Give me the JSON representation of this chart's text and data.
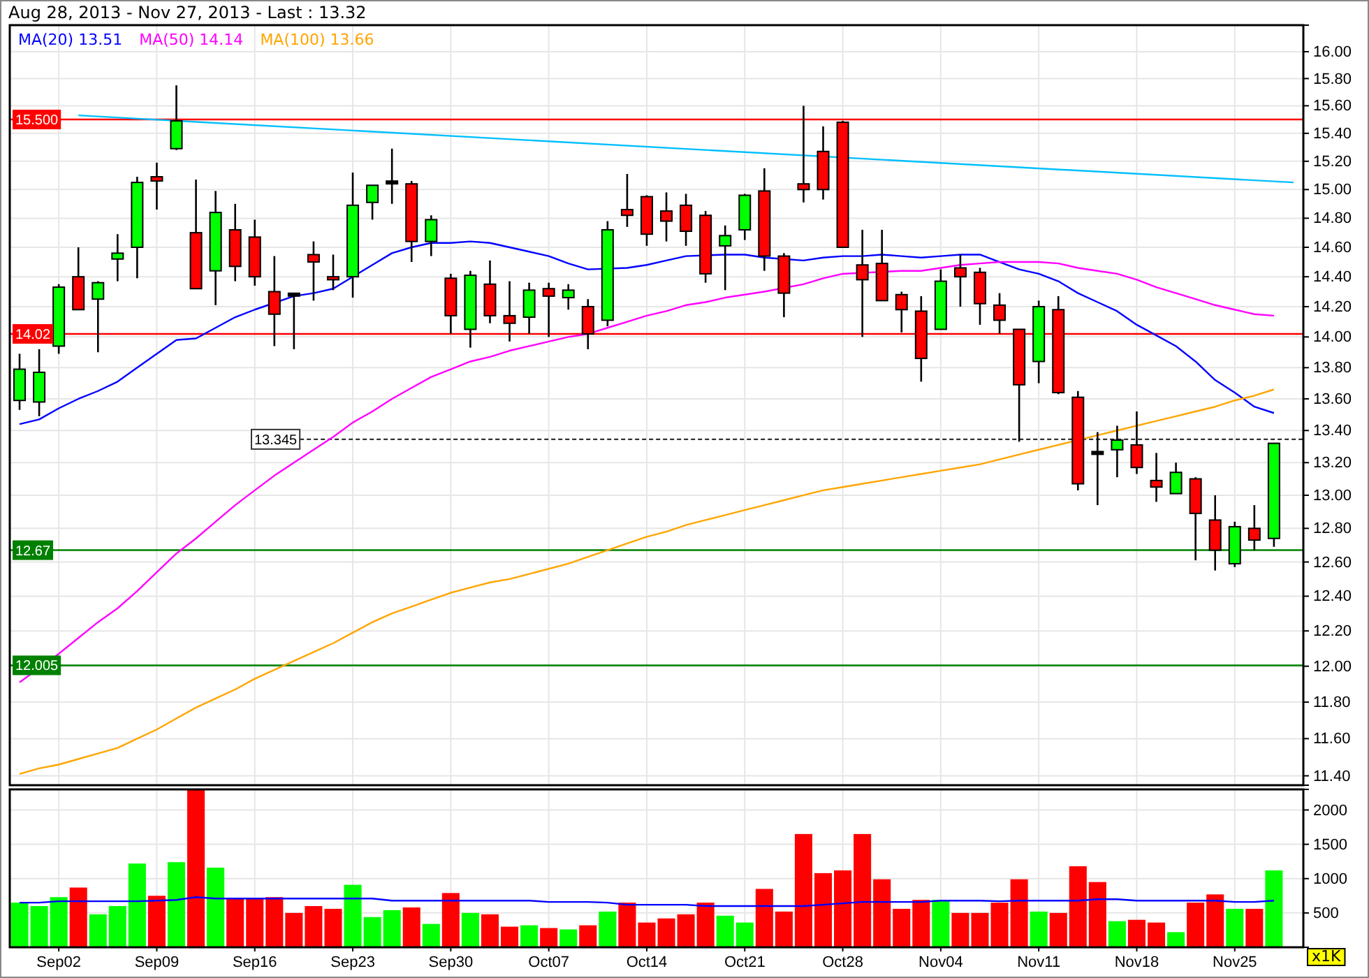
{
  "chart_data": [
    {
      "type": "candlestick",
      "title": "Aug 28, 2013 - Nov 27, 2013 - Last : 13.32",
      "log": true,
      "grid": true,
      "legend": "top left",
      "tick_labels": "y",
      "categories": [
        null,
        null,
        null,
        null,
        null,
        null,
        null,
        null,
        null,
        null,
        null,
        null,
        null,
        null,
        null,
        null,
        null,
        null,
        null,
        null,
        null,
        null,
        null,
        null,
        null,
        null,
        null,
        null,
        null,
        null,
        null,
        null,
        null,
        null,
        null,
        null,
        null,
        null,
        null,
        null,
        null,
        null,
        null,
        null,
        null,
        null,
        null,
        null,
        null,
        null,
        null,
        null,
        null,
        null,
        null,
        null,
        null,
        null,
        null,
        null,
        null,
        null,
        null,
        null,
        null,
        null
      ],
      "ylim": [
        11.35,
        16.2
      ],
      "yticks": [
        {
          "value": 11.4,
          "label": "11.40"
        },
        {
          "value": 11.6,
          "label": "11.60"
        },
        {
          "value": 11.8,
          "label": "11.80"
        },
        {
          "value": 12,
          "label": "12.00"
        },
        {
          "value": 12.2,
          "label": "12.20"
        },
        {
          "value": 12.4,
          "label": "12.40"
        },
        {
          "value": 12.6,
          "label": "12.60"
        },
        {
          "value": 12.8,
          "label": "12.80"
        },
        {
          "value": 13,
          "label": "13.00"
        },
        {
          "value": 13.2,
          "label": "13.20"
        },
        {
          "value": 13.4,
          "label": "13.40"
        },
        {
          "value": 13.6,
          "label": "13.60"
        },
        {
          "value": 13.8,
          "label": "13.80"
        },
        {
          "value": 14,
          "label": "14.00"
        },
        {
          "value": 14.2,
          "label": "14.20"
        },
        {
          "value": 14.4,
          "label": "14.40"
        },
        {
          "value": 14.6,
          "label": "14.60"
        },
        {
          "value": 14.8,
          "label": "14.80"
        },
        {
          "value": 15,
          "label": "15.00"
        },
        {
          "value": 15.2,
          "label": "15.20"
        },
        {
          "value": 15.4,
          "label": "15.40"
        },
        {
          "value": 15.6,
          "label": "15.60"
        },
        {
          "value": 15.8,
          "label": "15.80"
        },
        {
          "value": 16,
          "label": "16.00"
        }
      ],
      "ref_lines": [
        {
          "axis": "y",
          "value": 15.5,
          "label": "15.500",
          "color": "#ff0000",
          "line_style": "solid"
        },
        {
          "axis": "y",
          "value": 14.02,
          "label": "14.02",
          "color": "#ff0000",
          "line_style": "solid"
        },
        {
          "axis": "y",
          "value": 13.345,
          "label": "13.345",
          "color": "#333333",
          "line_style": "dashed"
        },
        {
          "axis": "y",
          "value": 12.67,
          "label": "12.67",
          "color": "#008000",
          "line_style": "solid"
        },
        {
          "axis": "y",
          "value": 12.005,
          "label": "12.005",
          "color": "#008000",
          "line_style": "solid"
        }
      ],
      "series": [
        {
          "type": "line",
          "name": "MA(20) 13.51",
          "color": "#0000ff",
          "values": [
            13.44,
            13.47,
            13.54,
            13.6,
            13.65,
            13.71,
            13.8,
            13.89,
            13.98,
            13.99,
            14.06,
            14.13,
            14.18,
            null,
            14.27,
            14.29,
            14.32,
            14.4,
            14.48,
            14.56,
            14.6,
            14.63,
            14.63,
            14.64,
            14.63,
            14.6,
            14.57,
            14.54,
            14.49,
            14.45,
            null,
            14.46,
            14.48,
            14.51,
            14.54,
            null,
            14.55,
            14.55,
            14.53,
            null,
            14.51,
            14.53,
            14.54,
            14.54,
            14.55,
            14.54,
            14.53,
            14.54,
            14.55,
            14.55,
            14.5,
            14.45,
            14.42,
            14.37,
            14.29,
            14.23,
            14.17,
            14.08,
            14.01,
            13.94,
            13.84,
            13.72,
            13.64,
            13.55,
            13.51,
            null
          ]
        },
        {
          "type": "line",
          "name": "MA(50) 14.14",
          "color": "#ff00ff",
          "values": [
            11.91,
            11.99,
            12.07,
            12.16,
            12.25,
            12.33,
            12.43,
            12.54,
            12.65,
            12.74,
            12.84,
            12.94,
            13.03,
            13.12,
            13.2,
            13.28,
            13.36,
            13.45,
            13.52,
            13.6,
            13.67,
            13.74,
            13.79,
            13.84,
            13.87,
            13.91,
            13.94,
            13.97,
            14,
            14.02,
            14.06,
            14.1,
            14.14,
            14.17,
            14.21,
            14.23,
            14.26,
            14.28,
            14.3,
            null,
            14.35,
            14.39,
            14.42,
            null,
            null,
            14.44,
            14.44,
            14.46,
            14.48,
            14.49,
            14.5,
            14.5,
            14.5,
            14.49,
            14.46,
            14.44,
            14.42,
            14.38,
            14.33,
            14.29,
            14.25,
            14.21,
            14.18,
            14.15,
            14.14,
            null
          ]
        },
        {
          "type": "line",
          "name": "MA(100) 13.66",
          "color": "#ffa500",
          "values": [
            11.41,
            11.44,
            11.46,
            11.49,
            11.52,
            11.55,
            11.6,
            11.65,
            11.71,
            11.77,
            11.82,
            11.87,
            11.93,
            11.98,
            12.03,
            12.08,
            12.13,
            12.19,
            12.25,
            12.3,
            12.34,
            12.38,
            12.42,
            12.45,
            12.48,
            12.5,
            12.53,
            12.56,
            12.59,
            12.63,
            12.67,
            12.71,
            12.75,
            12.78,
            12.82,
            12.85,
            12.88,
            12.91,
            12.94,
            12.97,
            13,
            13.03,
            13.05,
            13.07,
            13.09,
            13.11,
            13.13,
            13.15,
            13.17,
            13.19,
            13.22,
            13.25,
            13.28,
            13.31,
            null,
            13.37,
            13.4,
            13.43,
            13.46,
            13.49,
            13.52,
            13.55,
            13.59,
            13.62,
            13.66,
            null
          ]
        },
        {
          "type": "line",
          "color": "#00bfff",
          "values": [
            null,
            null,
            null,
            15.53,
            null,
            null,
            null,
            null,
            null,
            null,
            null,
            null,
            null,
            null,
            null,
            null,
            null,
            null,
            null,
            null,
            null,
            null,
            null,
            null,
            null,
            null,
            null,
            null,
            null,
            null,
            null,
            null,
            null,
            null,
            null,
            null,
            null,
            null,
            null,
            null,
            null,
            null,
            null,
            null,
            null,
            null,
            null,
            null,
            null,
            null,
            null,
            null,
            null,
            null,
            null,
            null,
            null,
            null,
            null,
            null,
            null,
            null,
            null,
            null,
            null,
            15.05
          ]
        },
        {
          "ohlc": [
            [
              13.59,
              13.89,
              13.53,
              13.79
            ],
            [
              13.58,
              13.92,
              13.49,
              13.77
            ],
            [
              13.94,
              14.35,
              13.89,
              14.33
            ],
            [
              14.4,
              14.6,
              14.18,
              14.18
            ],
            [
              14.25,
              14.37,
              13.9,
              14.36
            ],
            [
              14.52,
              14.69,
              14.37,
              14.56
            ],
            [
              14.6,
              15.09,
              14.39,
              15.05
            ],
            [
              15.09,
              15.19,
              14.86,
              15.06
            ],
            [
              15.29,
              15.75,
              15.28,
              15.49
            ],
            [
              14.7,
              15.07,
              14.32,
              14.32
            ],
            [
              14.44,
              14.99,
              14.21,
              14.84
            ],
            [
              14.72,
              14.9,
              14.37,
              14.47
            ],
            [
              14.67,
              14.79,
              14.34,
              14.4
            ],
            [
              14.3,
              14.54,
              13.94,
              14.15
            ],
            [
              14.28,
              14.29,
              13.92,
              14.28
            ],
            [
              14.55,
              14.64,
              14.24,
              14.5
            ],
            [
              14.4,
              14.55,
              14.31,
              14.38
            ],
            [
              14.4,
              15.12,
              14.26,
              14.89
            ],
            [
              14.91,
              15.03,
              14.79,
              15.03
            ],
            [
              15.05,
              15.29,
              14.9,
              15.05
            ],
            [
              15.04,
              15.06,
              14.5,
              14.64
            ],
            [
              14.64,
              14.82,
              14.54,
              14.79
            ],
            [
              14.39,
              14.42,
              14.02,
              14.14
            ],
            [
              14.05,
              14.44,
              13.93,
              14.41
            ],
            [
              14.35,
              14.51,
              14.09,
              14.14
            ],
            [
              14.14,
              14.37,
              13.97,
              14.09
            ],
            [
              14.13,
              14.36,
              14.02,
              14.31
            ],
            [
              14.32,
              14.36,
              14,
              14.27
            ],
            [
              14.26,
              14.35,
              14.18,
              14.31
            ],
            [
              14.2,
              14.25,
              13.92,
              14.02
            ],
            [
              14.11,
              14.78,
              14.07,
              14.72
            ],
            [
              14.86,
              15.11,
              14.74,
              14.82
            ],
            [
              14.95,
              14.96,
              14.61,
              14.69
            ],
            [
              14.85,
              14.98,
              14.64,
              14.78
            ],
            [
              14.89,
              14.97,
              14.61,
              14.71
            ],
            [
              14.82,
              14.85,
              14.36,
              14.42
            ],
            [
              14.61,
              14.75,
              14.31,
              14.68
            ],
            [
              14.72,
              14.97,
              14.65,
              14.96
            ],
            [
              14.99,
              15.15,
              14.44,
              14.54
            ],
            [
              14.54,
              14.56,
              14.13,
              14.29
            ],
            [
              15.04,
              15.6,
              14.91,
              15
            ],
            [
              15.27,
              15.45,
              14.93,
              15
            ],
            [
              15.48,
              15.49,
              14.6,
              14.6
            ],
            [
              14.48,
              14.72,
              14,
              14.38
            ],
            [
              14.49,
              14.72,
              14.24,
              14.24
            ],
            [
              14.28,
              14.3,
              14.03,
              14.18
            ],
            [
              14.17,
              14.27,
              13.71,
              13.86
            ],
            [
              14.05,
              14.45,
              14.05,
              14.37
            ],
            [
              14.46,
              14.55,
              14.2,
              14.4
            ],
            [
              14.43,
              14.46,
              14.08,
              14.22
            ],
            [
              14.21,
              14.29,
              14.02,
              14.11
            ],
            [
              14.05,
              14.05,
              13.33,
              13.69
            ],
            [
              13.84,
              14.24,
              13.7,
              14.2
            ],
            [
              14.18,
              14.27,
              13.63,
              13.64
            ],
            [
              13.61,
              13.65,
              13.03,
              13.07
            ],
            [
              13.26,
              13.39,
              12.94,
              13.26
            ],
            [
              13.28,
              13.43,
              13.11,
              13.34
            ],
            [
              13.31,
              13.52,
              13.13,
              13.17
            ],
            [
              13.09,
              13.26,
              12.96,
              13.05
            ],
            [
              13.01,
              13.2,
              13.01,
              13.14
            ],
            [
              13.1,
              13.11,
              12.61,
              12.89
            ],
            [
              12.85,
              13,
              12.55,
              12.67
            ],
            [
              12.59,
              12.84,
              12.57,
              12.81
            ],
            [
              12.8,
              12.94,
              12.67,
              12.73
            ],
            [
              12.74,
              13.32,
              12.69,
              13.32
            ],
            null
          ],
          "colors": [
            "#00ff00",
            "#00ff00",
            "#00ff00",
            "#ff0000",
            "#00ff00",
            "#00ff00",
            "#00ff00",
            "#ff0000",
            "#00ff00",
            "#ff0000",
            "#00ff00",
            "#ff0000",
            "#ff0000",
            "#ff0000",
            "#000000",
            "#ff0000",
            "#ff0000",
            "#00ff00",
            "#00ff00",
            "#000000",
            "#ff0000",
            "#00ff00",
            "#ff0000",
            "#00ff00",
            "#ff0000",
            "#ff0000",
            "#00ff00",
            "#ff0000",
            "#00ff00",
            "#ff0000",
            "#00ff00",
            "#ff0000",
            "#ff0000",
            "#ff0000",
            "#ff0000",
            "#ff0000",
            "#00ff00",
            "#00ff00",
            "#ff0000",
            "#ff0000",
            "#ff0000",
            "#ff0000",
            "#ff0000",
            "#ff0000",
            "#ff0000",
            "#ff0000",
            "#ff0000",
            "#00ff00",
            "#ff0000",
            "#ff0000",
            "#ff0000",
            "#ff0000",
            "#00ff00",
            "#ff0000",
            "#ff0000",
            "#000000",
            "#00ff00",
            "#ff0000",
            "#ff0000",
            "#00ff00",
            "#ff0000",
            "#ff0000",
            "#00ff00",
            "#ff0000",
            "#00ff00",
            null
          ]
        }
      ]
    },
    {
      "type": "bar",
      "grid": true,
      "ylabel": "x1K",
      "categories": [
        null,
        null,
        "Sep02",
        null,
        null,
        null,
        null,
        "Sep09",
        null,
        null,
        null,
        null,
        "Sep16",
        null,
        null,
        null,
        null,
        "Sep23",
        null,
        null,
        null,
        null,
        "Sep30",
        null,
        null,
        null,
        null,
        "Oct07",
        null,
        null,
        null,
        null,
        "Oct14",
        null,
        null,
        null,
        null,
        "Oct21",
        null,
        null,
        null,
        null,
        "Oct28",
        null,
        null,
        null,
        null,
        "Nov04",
        null,
        null,
        null,
        null,
        "Nov11",
        null,
        null,
        null,
        null,
        "Nov18",
        null,
        null,
        null,
        null,
        "Nov25",
        null,
        null,
        null
      ],
      "ylim": [
        0,
        2300
      ],
      "yticks": [
        500,
        1000,
        1500,
        2000
      ],
      "series": [
        {
          "values": [
            650,
            600,
            730,
            870,
            480,
            600,
            1220,
            750,
            1240,
            2300,
            1160,
            710,
            710,
            730,
            500,
            600,
            560,
            910,
            440,
            540,
            580,
            340,
            790,
            500,
            480,
            300,
            320,
            280,
            260,
            320,
            520,
            650,
            360,
            420,
            480,
            650,
            460,
            360,
            850,
            520,
            1650,
            1080,
            1120,
            1650,
            990,
            560,
            690,
            690,
            500,
            500,
            650,
            990,
            520,
            500,
            1180,
            950,
            380,
            400,
            360,
            220,
            650,
            770,
            560,
            560,
            1120,
            null
          ],
          "colors": [
            "#00ff00",
            "#00ff00",
            "#00ff00",
            "#ff0000",
            "#00ff00",
            "#00ff00",
            "#00ff00",
            "#ff0000",
            "#00ff00",
            "#ff0000",
            "#00ff00",
            "#ff0000",
            "#ff0000",
            "#ff0000",
            "#ff0000",
            "#ff0000",
            "#ff0000",
            "#00ff00",
            "#00ff00",
            "#00ff00",
            "#ff0000",
            "#00ff00",
            "#ff0000",
            "#00ff00",
            "#ff0000",
            "#ff0000",
            "#00ff00",
            "#ff0000",
            "#00ff00",
            "#ff0000",
            "#00ff00",
            "#ff0000",
            "#ff0000",
            "#ff0000",
            "#ff0000",
            "#ff0000",
            "#00ff00",
            "#00ff00",
            "#ff0000",
            "#ff0000",
            "#ff0000",
            "#ff0000",
            "#ff0000",
            "#ff0000",
            "#ff0000",
            "#ff0000",
            "#ff0000",
            "#00ff00",
            "#ff0000",
            "#ff0000",
            "#ff0000",
            "#ff0000",
            "#00ff00",
            "#ff0000",
            "#ff0000",
            "#ff0000",
            "#00ff00",
            "#ff0000",
            "#ff0000",
            "#00ff00",
            "#ff0000",
            "#ff0000",
            "#00ff00",
            "#ff0000",
            "#00ff00",
            null
          ]
        },
        {
          "type": "line",
          "color": "#0000ff",
          "values": [
            650,
            650,
            670,
            670,
            670,
            670,
            670,
            680,
            690,
            730,
            710,
            710,
            710,
            710,
            710,
            710,
            710,
            710,
            710,
            680,
            680,
            680,
            680,
            680,
            680,
            680,
            680,
            660,
            660,
            660,
            650,
            620,
            620,
            620,
            620,
            600,
            600,
            600,
            600,
            600,
            600,
            620,
            640,
            660,
            660,
            660,
            660,
            680,
            680,
            680,
            670,
            680,
            680,
            680,
            680,
            700,
            700,
            680,
            680,
            680,
            680,
            680,
            660,
            660,
            680,
            null
          ]
        }
      ]
    }
  ]
}
